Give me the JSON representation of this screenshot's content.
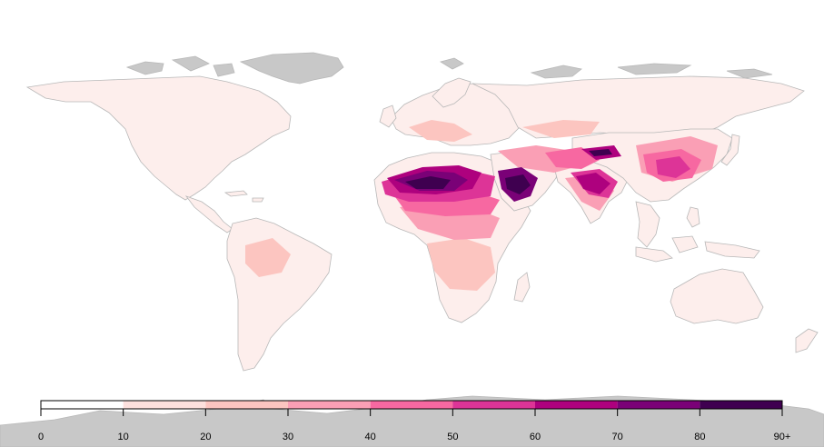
{
  "legend": {
    "tick_labels": [
      "0",
      "10",
      "20",
      "30",
      "40",
      "50",
      "60",
      "70",
      "80",
      "90+"
    ],
    "bins": [
      {
        "from": 0,
        "to": 10,
        "color": "#ffffff"
      },
      {
        "from": 10,
        "to": 20,
        "color": "#fde0dd"
      },
      {
        "from": 20,
        "to": 30,
        "color": "#fcc5c0"
      },
      {
        "from": 30,
        "to": 40,
        "color": "#fa9fb5"
      },
      {
        "from": 40,
        "to": 50,
        "color": "#f768a1"
      },
      {
        "from": 50,
        "to": 60,
        "color": "#dd3497"
      },
      {
        "from": 60,
        "to": 70,
        "color": "#ae017e"
      },
      {
        "from": 70,
        "to": 80,
        "color": "#7a0177"
      },
      {
        "from": 80,
        "to": 90,
        "color": "#3f0050"
      }
    ]
  },
  "colors": {
    "no_data_land": "#c8c8c8",
    "borders": "#b8b8b8",
    "base_land": "#fdeeec"
  }
}
